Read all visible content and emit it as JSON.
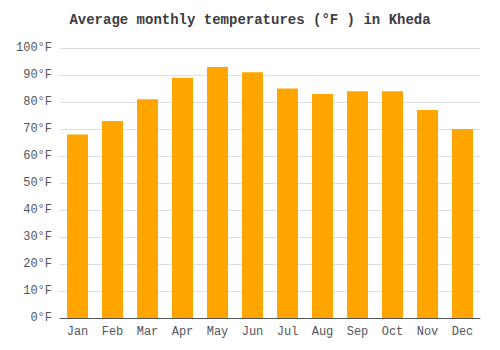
{
  "chart_data": {
    "type": "bar",
    "title": "Average monthly temperatures (°F ) in Kheda",
    "categories": [
      "Jan",
      "Feb",
      "Mar",
      "Apr",
      "May",
      "Jun",
      "Jul",
      "Aug",
      "Sep",
      "Oct",
      "Nov",
      "Dec"
    ],
    "values": [
      68,
      73,
      81,
      89,
      93,
      91,
      85,
      83,
      84,
      84,
      77,
      70
    ],
    "color": "#FFA500",
    "ylim": [
      0,
      100
    ],
    "yticks": [
      {
        "value": 0,
        "label": "0°F"
      },
      {
        "value": 10,
        "label": "10°F"
      },
      {
        "value": 20,
        "label": "20°F"
      },
      {
        "value": 30,
        "label": "30°F"
      },
      {
        "value": 40,
        "label": "40°F"
      },
      {
        "value": 50,
        "label": "50°F"
      },
      {
        "value": 60,
        "label": "60°F"
      },
      {
        "value": 70,
        "label": "70°F"
      },
      {
        "value": 80,
        "label": "80°F"
      },
      {
        "value": 90,
        "label": "90°F"
      },
      {
        "value": 100,
        "label": "100°F"
      }
    ],
    "grid": true
  }
}
